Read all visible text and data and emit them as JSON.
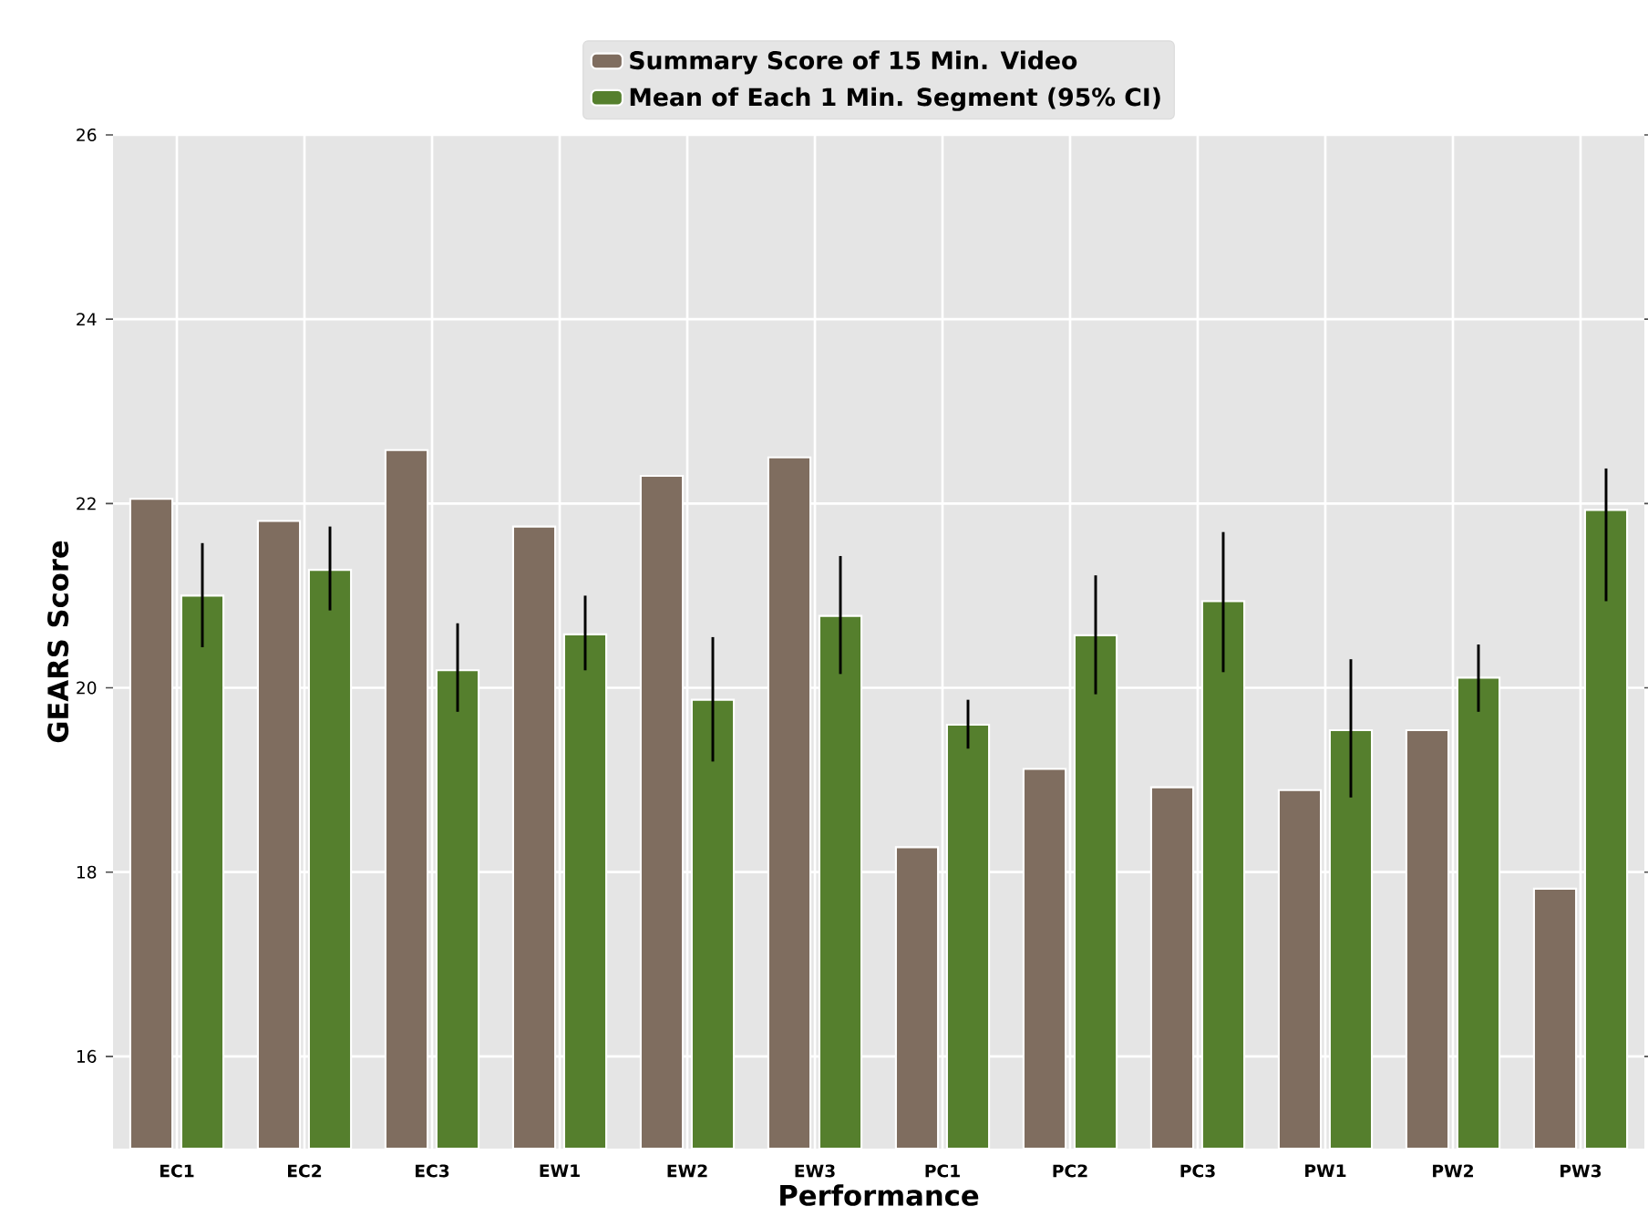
{
  "chart_data": {
    "type": "bar",
    "xlabel": "Performance",
    "ylabel": "GEARS Score",
    "categories": [
      "EC1",
      "EC2",
      "EC3",
      "EW1",
      "EW2",
      "EW3",
      "PC1",
      "PC2",
      "PC3",
      "PW1",
      "PW2",
      "PW3"
    ],
    "series": [
      {
        "name": "Summary Score of 15 Min. Video",
        "color": "#7f6d5f",
        "values": [
          22.05,
          21.81,
          22.58,
          21.75,
          22.3,
          22.5,
          18.27,
          19.12,
          18.92,
          18.89,
          19.54,
          17.82
        ]
      },
      {
        "name": "Mean of Each 1 Min. Segment (95% CI)",
        "color": "#557f2d",
        "values": [
          21.0,
          21.28,
          20.19,
          20.58,
          19.87,
          20.78,
          19.6,
          20.57,
          20.94,
          19.54,
          20.11,
          21.93
        ],
        "errors": [
          [
            20.44,
            21.57
          ],
          [
            20.84,
            21.75
          ],
          [
            19.74,
            20.7
          ],
          [
            20.19,
            21.0
          ],
          [
            19.2,
            20.55
          ],
          [
            20.15,
            21.43
          ],
          [
            19.34,
            19.87
          ],
          [
            19.93,
            21.22
          ],
          [
            20.17,
            21.69
          ],
          [
            18.81,
            20.31
          ],
          [
            19.74,
            20.47
          ],
          [
            20.94,
            22.38
          ]
        ]
      }
    ],
    "ylim": [
      15,
      26
    ],
    "yticks": [
      16,
      18,
      20,
      22,
      24,
      26
    ],
    "grid": true,
    "legend": "top"
  }
}
